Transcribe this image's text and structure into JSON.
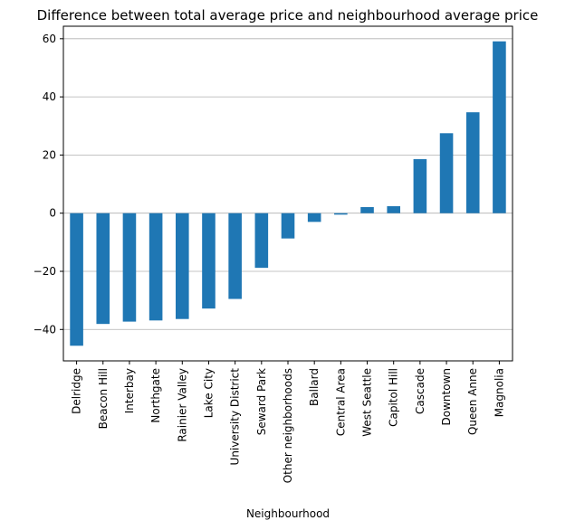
{
  "chart_data": {
    "type": "bar",
    "title": "Difference between total average price and neighbourhood average price",
    "xlabel": "Neighbourhood",
    "ylabel": "",
    "categories": [
      "Delridge",
      "Beacon Hill",
      "Interbay",
      "Northgate",
      "Rainier Valley",
      "Lake City",
      "University District",
      "Seward Park",
      "Other neighborhoods",
      "Ballard",
      "Central Area",
      "West Seattle",
      "Capitol Hill",
      "Cascade",
      "Downtown",
      "Queen Anne",
      "Magnolia"
    ],
    "values": [
      -45.6,
      -38.1,
      -37.3,
      -36.9,
      -36.4,
      -32.8,
      -29.5,
      -18.8,
      -8.7,
      -3.0,
      -0.5,
      2.1,
      2.4,
      18.6,
      27.5,
      34.7,
      59.1
    ],
    "yticks": [
      -40,
      -20,
      0,
      20,
      40,
      60
    ],
    "ytick_labels": [
      "−40",
      "−20",
      "0",
      "20",
      "40",
      "60"
    ],
    "ylim": [
      -50.8,
      64.3
    ],
    "grid": "horizontal",
    "bar_color": "#1f77b4",
    "grid_color": "#b0b0b0"
  }
}
